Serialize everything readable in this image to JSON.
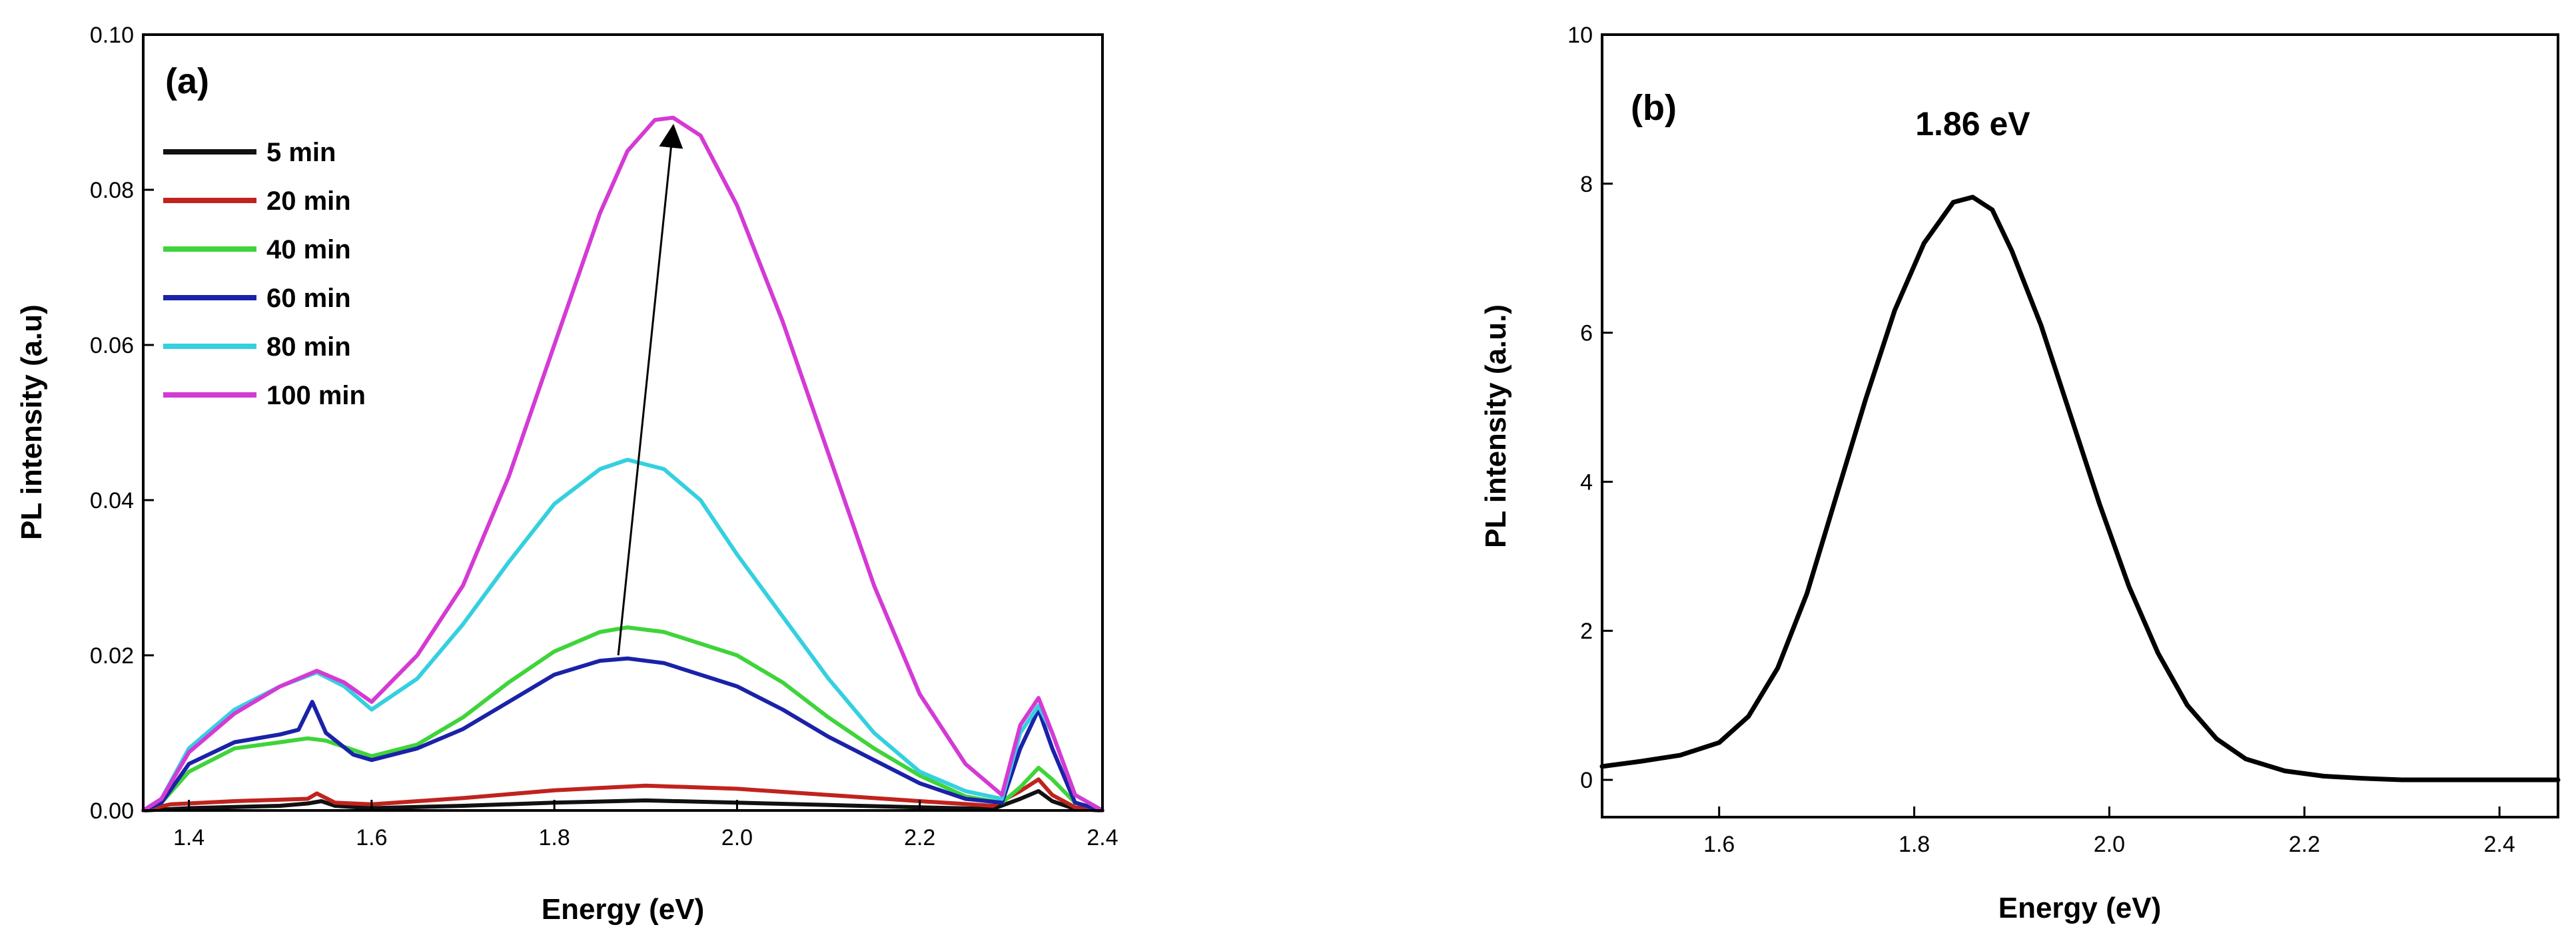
{
  "chart_data": [
    {
      "type": "line",
      "panel_label": "(a)",
      "xlabel": "Energy (eV)",
      "ylabel": "PL intensity (a.u)",
      "xlim": [
        1.35,
        2.4
      ],
      "ylim": [
        0.0,
        0.1
      ],
      "xticks": [
        "1.4",
        "1.6",
        "1.8",
        "2.0",
        "2.2",
        "2.4"
      ],
      "xtick_values": [
        1.4,
        1.6,
        1.8,
        2.0,
        2.2,
        2.4
      ],
      "yticks": [
        "0.00",
        "0.02",
        "0.04",
        "0.06",
        "0.08",
        "0.10"
      ],
      "ytick_values": [
        0.0,
        0.02,
        0.04,
        0.06,
        0.08,
        0.1
      ],
      "legend_position": "top-left",
      "arrow": {
        "from": [
          1.87,
          0.02
        ],
        "to": [
          1.93,
          0.088
        ]
      },
      "series": [
        {
          "name": "5 min",
          "color": "#111111",
          "points": [
            [
              1.35,
              0
            ],
            [
              1.4,
              0.0003
            ],
            [
              1.5,
              0.0006
            ],
            [
              1.53,
              0.0009
            ],
            [
              1.545,
              0.0012
            ],
            [
              1.56,
              0.0006
            ],
            [
              1.6,
              0.0003
            ],
            [
              1.7,
              0.0006
            ],
            [
              1.8,
              0.001
            ],
            [
              1.9,
              0.0013
            ],
            [
              2.0,
              0.001
            ],
            [
              2.1,
              0.0007
            ],
            [
              2.2,
              0.0004
            ],
            [
              2.28,
              0.0002
            ],
            [
              2.31,
              0.0015
            ],
            [
              2.33,
              0.0025
            ],
            [
              2.345,
              0.0012
            ],
            [
              2.37,
              0.0002
            ],
            [
              2.4,
              0
            ]
          ]
        },
        {
          "name": "20 min",
          "color": "#c0231d",
          "points": [
            [
              1.35,
              0
            ],
            [
              1.38,
              0.0008
            ],
            [
              1.45,
              0.0012
            ],
            [
              1.53,
              0.0015
            ],
            [
              1.54,
              0.0022
            ],
            [
              1.56,
              0.001
            ],
            [
              1.6,
              0.0008
            ],
            [
              1.7,
              0.0016
            ],
            [
              1.8,
              0.0026
            ],
            [
              1.9,
              0.0032
            ],
            [
              2.0,
              0.0028
            ],
            [
              2.1,
              0.002
            ],
            [
              2.2,
              0.0012
            ],
            [
              2.28,
              0.0006
            ],
            [
              2.31,
              0.0025
            ],
            [
              2.33,
              0.004
            ],
            [
              2.345,
              0.002
            ],
            [
              2.37,
              0.0004
            ],
            [
              2.4,
              0
            ]
          ]
        },
        {
          "name": "40 min",
          "color": "#3fd43a",
          "points": [
            [
              1.35,
              0
            ],
            [
              1.37,
              0.001
            ],
            [
              1.4,
              0.005
            ],
            [
              1.45,
              0.008
            ],
            [
              1.5,
              0.0088
            ],
            [
              1.53,
              0.0093
            ],
            [
              1.55,
              0.009
            ],
            [
              1.6,
              0.007
            ],
            [
              1.65,
              0.0085
            ],
            [
              1.7,
              0.012
            ],
            [
              1.75,
              0.0165
            ],
            [
              1.8,
              0.0205
            ],
            [
              1.85,
              0.023
            ],
            [
              1.88,
              0.0236
            ],
            [
              1.92,
              0.023
            ],
            [
              2.0,
              0.02
            ],
            [
              2.05,
              0.0165
            ],
            [
              2.1,
              0.012
            ],
            [
              2.15,
              0.008
            ],
            [
              2.2,
              0.0045
            ],
            [
              2.25,
              0.0018
            ],
            [
              2.29,
              0.001
            ],
            [
              2.31,
              0.003
            ],
            [
              2.33,
              0.0055
            ],
            [
              2.345,
              0.004
            ],
            [
              2.37,
              0.001
            ],
            [
              2.4,
              0
            ]
          ]
        },
        {
          "name": "60 min",
          "color": "#1a22a8",
          "points": [
            [
              1.35,
              0
            ],
            [
              1.37,
              0.001
            ],
            [
              1.4,
              0.006
            ],
            [
              1.45,
              0.0088
            ],
            [
              1.5,
              0.0098
            ],
            [
              1.52,
              0.0104
            ],
            [
              1.535,
              0.014
            ],
            [
              1.55,
              0.01
            ],
            [
              1.58,
              0.0072
            ],
            [
              1.6,
              0.0065
            ],
            [
              1.65,
              0.008
            ],
            [
              1.7,
              0.0105
            ],
            [
              1.75,
              0.014
            ],
            [
              1.8,
              0.0175
            ],
            [
              1.85,
              0.0193
            ],
            [
              1.88,
              0.0196
            ],
            [
              1.92,
              0.019
            ],
            [
              2.0,
              0.016
            ],
            [
              2.05,
              0.013
            ],
            [
              2.1,
              0.0095
            ],
            [
              2.15,
              0.0065
            ],
            [
              2.2,
              0.0035
            ],
            [
              2.25,
              0.0015
            ],
            [
              2.29,
              0.001
            ],
            [
              2.31,
              0.008
            ],
            [
              2.33,
              0.013
            ],
            [
              2.345,
              0.008
            ],
            [
              2.37,
              0.001
            ],
            [
              2.4,
              0
            ]
          ]
        },
        {
          "name": "80 min",
          "color": "#35d0e0",
          "points": [
            [
              1.35,
              0
            ],
            [
              1.37,
              0.0015
            ],
            [
              1.4,
              0.008
            ],
            [
              1.45,
              0.013
            ],
            [
              1.5,
              0.016
            ],
            [
              1.54,
              0.0178
            ],
            [
              1.57,
              0.016
            ],
            [
              1.6,
              0.013
            ],
            [
              1.65,
              0.017
            ],
            [
              1.7,
              0.024
            ],
            [
              1.75,
              0.032
            ],
            [
              1.8,
              0.0395
            ],
            [
              1.85,
              0.044
            ],
            [
              1.88,
              0.0452
            ],
            [
              1.92,
              0.044
            ],
            [
              1.96,
              0.04
            ],
            [
              2.0,
              0.033
            ],
            [
              2.05,
              0.025
            ],
            [
              2.1,
              0.017
            ],
            [
              2.15,
              0.01
            ],
            [
              2.2,
              0.005
            ],
            [
              2.25,
              0.0025
            ],
            [
              2.29,
              0.0015
            ],
            [
              2.31,
              0.01
            ],
            [
              2.33,
              0.0135
            ],
            [
              2.345,
              0.01
            ],
            [
              2.37,
              0.002
            ],
            [
              2.4,
              0
            ]
          ]
        },
        {
          "name": "100 min",
          "color": "#d43ad4",
          "points": [
            [
              1.35,
              0
            ],
            [
              1.37,
              0.0015
            ],
            [
              1.4,
              0.0075
            ],
            [
              1.45,
              0.0125
            ],
            [
              1.5,
              0.016
            ],
            [
              1.54,
              0.018
            ],
            [
              1.57,
              0.0165
            ],
            [
              1.6,
              0.014
            ],
            [
              1.65,
              0.02
            ],
            [
              1.7,
              0.029
            ],
            [
              1.75,
              0.043
            ],
            [
              1.8,
              0.06
            ],
            [
              1.85,
              0.077
            ],
            [
              1.88,
              0.085
            ],
            [
              1.91,
              0.089
            ],
            [
              1.93,
              0.0893
            ],
            [
              1.96,
              0.087
            ],
            [
              2.0,
              0.078
            ],
            [
              2.05,
              0.063
            ],
            [
              2.1,
              0.046
            ],
            [
              2.15,
              0.029
            ],
            [
              2.2,
              0.015
            ],
            [
              2.25,
              0.006
            ],
            [
              2.29,
              0.002
            ],
            [
              2.31,
              0.011
            ],
            [
              2.33,
              0.0145
            ],
            [
              2.345,
              0.01
            ],
            [
              2.37,
              0.002
            ],
            [
              2.4,
              0
            ]
          ]
        }
      ]
    },
    {
      "type": "line",
      "panel_label": "(b)",
      "xlabel": "Energy (eV)",
      "ylabel": "PL intensity (a.u.)",
      "xlim": [
        1.48,
        2.46
      ],
      "ylim": [
        -0.5,
        10
      ],
      "xticks": [
        "1.6",
        "1.8",
        "2.0",
        "2.2",
        "2.4"
      ],
      "xtick_values": [
        1.6,
        1.8,
        2.0,
        2.2,
        2.4
      ],
      "yticks": [
        "0",
        "2",
        "4",
        "6",
        "8",
        "10"
      ],
      "ytick_values": [
        0,
        2,
        4,
        6,
        8,
        10
      ],
      "annotation": {
        "text": "1.86 eV",
        "x": 1.86,
        "y": 8.65
      },
      "series": [
        {
          "name": "PL",
          "color": "#000000",
          "points": [
            [
              1.48,
              0.18
            ],
            [
              1.52,
              0.25
            ],
            [
              1.56,
              0.33
            ],
            [
              1.6,
              0.5
            ],
            [
              1.63,
              0.85
            ],
            [
              1.66,
              1.5
            ],
            [
              1.69,
              2.5
            ],
            [
              1.72,
              3.8
            ],
            [
              1.75,
              5.1
            ],
            [
              1.78,
              6.3
            ],
            [
              1.81,
              7.2
            ],
            [
              1.84,
              7.75
            ],
            [
              1.86,
              7.82
            ],
            [
              1.88,
              7.65
            ],
            [
              1.9,
              7.1
            ],
            [
              1.93,
              6.1
            ],
            [
              1.96,
              4.9
            ],
            [
              1.99,
              3.7
            ],
            [
              2.02,
              2.6
            ],
            [
              2.05,
              1.7
            ],
            [
              2.08,
              1.0
            ],
            [
              2.11,
              0.55
            ],
            [
              2.14,
              0.28
            ],
            [
              2.18,
              0.12
            ],
            [
              2.22,
              0.05
            ],
            [
              2.26,
              0.02
            ],
            [
              2.3,
              0.0
            ],
            [
              2.46,
              0.0
            ]
          ]
        }
      ]
    }
  ]
}
